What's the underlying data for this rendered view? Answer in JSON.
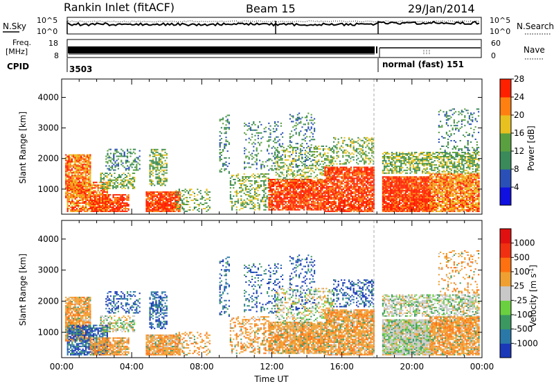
{
  "header": {
    "title": "Rankin Inlet (fitACF)",
    "beam": "Beam 15",
    "date": "29/Jan/2014"
  },
  "noise_panel": {
    "left_label": "N.Sky",
    "right_label": "N.Search",
    "left_ticks": [
      "10^5",
      "10^0"
    ],
    "right_ticks": [
      "10^5",
      "10^0"
    ]
  },
  "freq_panel": {
    "left_label_1": "Freq.",
    "left_label_2": "[MHz]",
    "left_ticks": [
      "18",
      "8"
    ],
    "right_label": "Nave",
    "right_ticks": [
      "60",
      "0"
    ]
  },
  "cpid_panel": {
    "label": "CPID",
    "mode_1": "3503",
    "mode_2": "normal (fast) 151"
  },
  "chart_data": [
    {
      "type": "heatmap",
      "name": "power-panel",
      "ylabel": "Slant Range [km]",
      "yticks": [
        "1000",
        "2000",
        "3000",
        "4000"
      ],
      "ylim": [
        180,
        4600
      ],
      "xlim_hours": [
        0,
        24
      ],
      "colorbar_label": "Power [dB]",
      "colorbar_ticks": [
        "4",
        "8",
        "12",
        "16",
        "20",
        "24",
        "28"
      ],
      "colorbar_colors": [
        "#1010e0",
        "#2a50b8",
        "#3a8a5a",
        "#5aa040",
        "#e8c020",
        "#ff8010",
        "#ff2000"
      ]
    },
    {
      "type": "heatmap",
      "name": "velocity-panel",
      "ylabel": "Slant Range [km]",
      "yticks": [
        "1000",
        "2000",
        "3000",
        "4000"
      ],
      "ylim": [
        180,
        4600
      ],
      "xlim_hours": [
        0,
        24
      ],
      "xlabel": "Time UT",
      "xticks": [
        "00:00",
        "04:00",
        "08:00",
        "12:00",
        "16:00",
        "20:00",
        "00:00"
      ],
      "colorbar_label": "Velocity [m s^-1]",
      "colorbar_ticks": [
        "1000",
        "500",
        "100",
        "25",
        "-25",
        "-100",
        "-500",
        "-1000"
      ],
      "colorbar_colors": [
        "#1a38b8",
        "#2a78a8",
        "#3a9860",
        "#6ad040",
        "#c8c8c8",
        "#f0a030",
        "#ff7010",
        "#f03010",
        "#e01010"
      ]
    }
  ]
}
